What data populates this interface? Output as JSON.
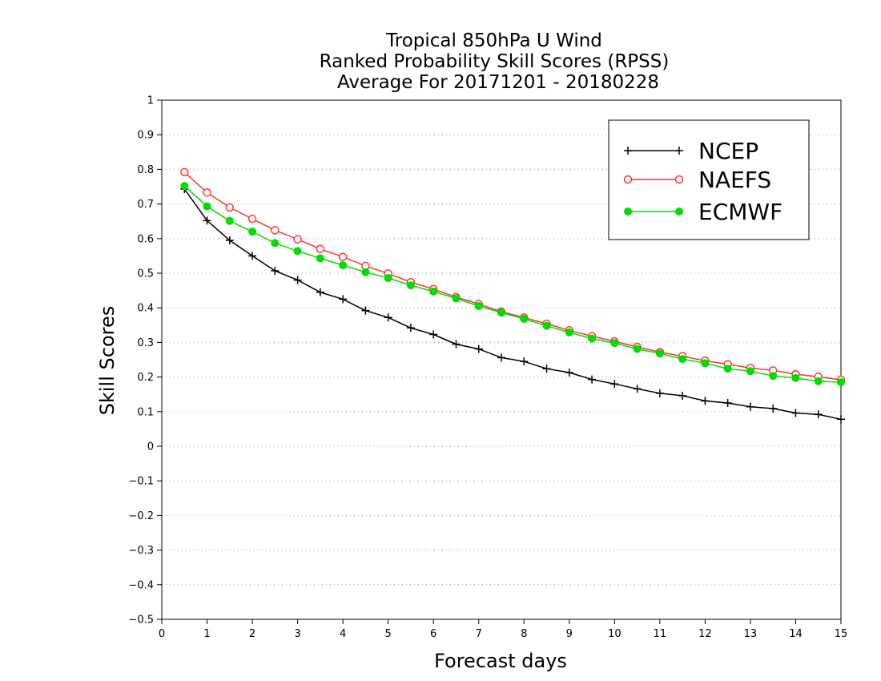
{
  "chart_data": {
    "type": "line",
    "title": [
      "Tropical 850hPa U Wind",
      "Ranked Probability Skill Scores (RPSS)",
      "Average For 20171201 - 20180228"
    ],
    "xlabel": "Forecast days",
    "ylabel": "Skill Scores",
    "xlim": [
      0,
      15
    ],
    "ylim": [
      -0.5,
      1
    ],
    "xticks": [
      "0",
      "1",
      "2",
      "3",
      "4",
      "5",
      "6",
      "7",
      "8",
      "9",
      "10",
      "11",
      "12",
      "13",
      "14",
      "15"
    ],
    "yticks": [
      "−0.5",
      "−0.4",
      "−0.3",
      "−0.2",
      "−0.1",
      "0",
      "0.1",
      "0.2",
      "0.3",
      "0.4",
      "0.5",
      "0.6",
      "0.7",
      "0.8",
      "0.9",
      "1"
    ],
    "grid": "horizontal dotted",
    "legend_position": "top-right",
    "x": [
      0.5,
      1,
      1.5,
      2,
      2.5,
      3,
      3.5,
      4,
      4.5,
      5,
      5.5,
      6,
      6.5,
      7,
      7.5,
      8,
      8.5,
      9,
      9.5,
      10,
      10.5,
      11,
      11.5,
      12,
      12.5,
      13,
      13.5,
      14,
      14.5,
      15
    ],
    "series": [
      {
        "name": "NCEP",
        "color": "#000000",
        "marker": "plus",
        "values": [
          0.743,
          0.652,
          0.595,
          0.55,
          0.507,
          0.48,
          0.445,
          0.425,
          0.392,
          0.372,
          0.342,
          0.323,
          0.295,
          0.281,
          0.256,
          0.245,
          0.224,
          0.213,
          0.193,
          0.18,
          0.166,
          0.153,
          0.146,
          0.131,
          0.125,
          0.114,
          0.109,
          0.096,
          0.092,
          0.078
        ]
      },
      {
        "name": "NAEFS",
        "color": "#ff3333",
        "marker": "open-circle",
        "values": [
          0.792,
          0.733,
          0.69,
          0.657,
          0.624,
          0.598,
          0.57,
          0.547,
          0.521,
          0.499,
          0.474,
          0.454,
          0.431,
          0.411,
          0.389,
          0.372,
          0.354,
          0.335,
          0.318,
          0.303,
          0.287,
          0.272,
          0.26,
          0.247,
          0.237,
          0.226,
          0.219,
          0.208,
          0.201,
          0.192
        ]
      },
      {
        "name": "ECMWF",
        "color": "#00dd00",
        "marker": "filled-circle",
        "values": [
          0.752,
          0.693,
          0.651,
          0.62,
          0.587,
          0.564,
          0.543,
          0.523,
          0.503,
          0.486,
          0.465,
          0.447,
          0.427,
          0.405,
          0.386,
          0.368,
          0.348,
          0.329,
          0.311,
          0.298,
          0.281,
          0.268,
          0.252,
          0.24,
          0.224,
          0.217,
          0.203,
          0.197,
          0.188,
          0.185
        ]
      }
    ]
  }
}
